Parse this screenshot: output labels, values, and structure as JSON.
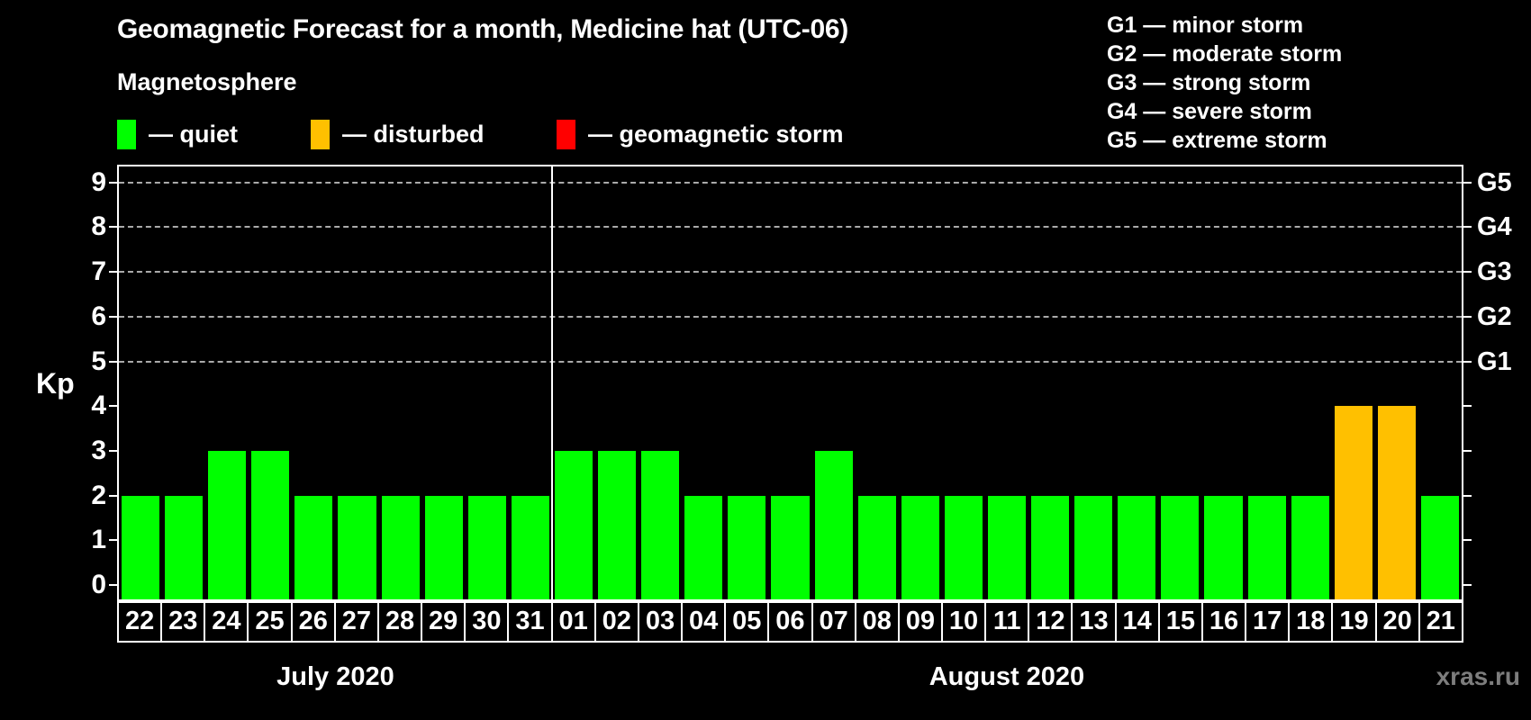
{
  "title": "Geomagnetic Forecast for a month, Medicine hat (UTC-06)",
  "subtitle": "Magnetosphere",
  "legend": {
    "items": [
      {
        "key": "quiet",
        "label": "— quiet",
        "color": "#00ff00"
      },
      {
        "key": "disturbed",
        "label": "— disturbed",
        "color": "#ffc000"
      },
      {
        "key": "storm",
        "label": "— geomagnetic storm",
        "color": "#ff0000"
      }
    ]
  },
  "g_legend": {
    "lines": [
      "G1 — minor storm",
      "G2 — moderate storm",
      "G3 — strong storm",
      "G4 — severe storm",
      "G5 — extreme storm"
    ]
  },
  "watermark": "xras.ru",
  "chart_data": {
    "type": "bar",
    "title": "Geomagnetic Forecast for a month, Medicine hat (UTC-06)",
    "ylabel_left": "Kp",
    "ylim": [
      -0.4,
      9.4
    ],
    "yticks_left": [
      0,
      1,
      2,
      3,
      4,
      5,
      6,
      7,
      8,
      9
    ],
    "yticks_right": [
      {
        "kp": 5,
        "label": "G1"
      },
      {
        "kp": 6,
        "label": "G2"
      },
      {
        "kp": 7,
        "label": "G3"
      },
      {
        "kp": 8,
        "label": "G4"
      },
      {
        "kp": 9,
        "label": "G5"
      }
    ],
    "gridlines_at_kp": [
      5,
      6,
      7,
      8,
      9
    ],
    "grid": "dashed horizontal lines at G-storm levels only",
    "legend_position": "top-left and top-right",
    "bar_colors_by_status": {
      "quiet": "#00ff00",
      "disturbed": "#ffc000",
      "storm": "#ff0000"
    },
    "months": [
      {
        "label": "July 2020",
        "days": [
          {
            "day": "22",
            "kp": 2,
            "status": "quiet"
          },
          {
            "day": "23",
            "kp": 2,
            "status": "quiet"
          },
          {
            "day": "24",
            "kp": 3,
            "status": "quiet"
          },
          {
            "day": "25",
            "kp": 3,
            "status": "quiet"
          },
          {
            "day": "26",
            "kp": 2,
            "status": "quiet"
          },
          {
            "day": "27",
            "kp": 2,
            "status": "quiet"
          },
          {
            "day": "28",
            "kp": 2,
            "status": "quiet"
          },
          {
            "day": "29",
            "kp": 2,
            "status": "quiet"
          },
          {
            "day": "30",
            "kp": 2,
            "status": "quiet"
          },
          {
            "day": "31",
            "kp": 2,
            "status": "quiet"
          }
        ]
      },
      {
        "label": "August 2020",
        "days": [
          {
            "day": "01",
            "kp": 3,
            "status": "quiet"
          },
          {
            "day": "02",
            "kp": 3,
            "status": "quiet"
          },
          {
            "day": "03",
            "kp": 3,
            "status": "quiet"
          },
          {
            "day": "04",
            "kp": 2,
            "status": "quiet"
          },
          {
            "day": "05",
            "kp": 2,
            "status": "quiet"
          },
          {
            "day": "06",
            "kp": 2,
            "status": "quiet"
          },
          {
            "day": "07",
            "kp": 3,
            "status": "quiet"
          },
          {
            "day": "08",
            "kp": 2,
            "status": "quiet"
          },
          {
            "day": "09",
            "kp": 2,
            "status": "quiet"
          },
          {
            "day": "10",
            "kp": 2,
            "status": "quiet"
          },
          {
            "day": "11",
            "kp": 2,
            "status": "quiet"
          },
          {
            "day": "12",
            "kp": 2,
            "status": "quiet"
          },
          {
            "day": "13",
            "kp": 2,
            "status": "quiet"
          },
          {
            "day": "14",
            "kp": 2,
            "status": "quiet"
          },
          {
            "day": "15",
            "kp": 2,
            "status": "quiet"
          },
          {
            "day": "16",
            "kp": 2,
            "status": "quiet"
          },
          {
            "day": "17",
            "kp": 2,
            "status": "quiet"
          },
          {
            "day": "18",
            "kp": 2,
            "status": "quiet"
          },
          {
            "day": "19",
            "kp": 4,
            "status": "disturbed"
          },
          {
            "day": "20",
            "kp": 4,
            "status": "disturbed"
          },
          {
            "day": "21",
            "kp": 2,
            "status": "quiet"
          }
        ]
      }
    ]
  }
}
